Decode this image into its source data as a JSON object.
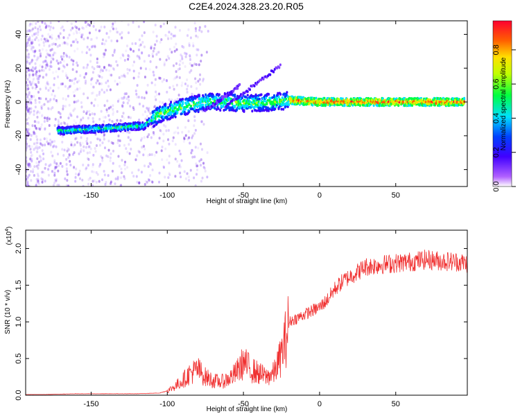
{
  "title": "C2E4.2024.328.23.20.R05",
  "colors": {
    "snr_line": "#f03030",
    "axis": "#000000",
    "background": "#ffffff"
  },
  "chart_data": [
    {
      "type": "heatmap",
      "xlabel": "Height of straight line (km)",
      "ylabel": "Frequency (Hz)",
      "xlim": [
        -193,
        97
      ],
      "ylim": [
        -50,
        48
      ],
      "xticks": [
        -150,
        -100,
        -50,
        0,
        50
      ],
      "xtick_labels": [
        "-150",
        "-100",
        "-50",
        "0",
        "50"
      ],
      "yticks": [
        -40,
        -20,
        0,
        20,
        40
      ],
      "ytick_labels": [
        "-40",
        "-20",
        "0",
        "20",
        "40"
      ],
      "colorscale": "rainbow (white-violet-blue-cyan-green-yellow-orange-red)",
      "ridge": [
        {
          "x": -170,
          "y": -17
        },
        {
          "x": -150,
          "y": -16
        },
        {
          "x": -130,
          "y": -15
        },
        {
          "x": -115,
          "y": -14
        },
        {
          "x": -105,
          "y": -7
        },
        {
          "x": -90,
          "y": -3
        },
        {
          "x": -75,
          "y": 0
        },
        {
          "x": -60,
          "y": 0
        },
        {
          "x": -45,
          "y": -1
        },
        {
          "x": -30,
          "y": 0
        },
        {
          "x": -20,
          "y": 1
        },
        {
          "x": 0,
          "y": 0
        },
        {
          "x": 50,
          "y": 0
        },
        {
          "x": 95,
          "y": 0
        }
      ],
      "colorbar": {
        "label": "Normalized spectral amplitude",
        "range": [
          0.0,
          0.97
        ],
        "ticks": [
          0.0,
          0.2,
          0.4,
          0.6,
          0.8
        ],
        "tick_labels": [
          "0.0",
          "0.2",
          "0.4",
          "0.6",
          "0.8"
        ]
      }
    },
    {
      "type": "line",
      "xlabel": "Height of straight line (km)",
      "ylabel": "SNR (10 * v/v)",
      "yscale_note": "(x10",
      "yscale_exp": "4",
      "xlim": [
        -193,
        97
      ],
      "ylim": [
        0,
        2.25
      ],
      "xticks": [
        -150,
        -100,
        -50,
        0,
        50
      ],
      "xtick_labels": [
        "-150",
        "-100",
        "-50",
        "0",
        "50"
      ],
      "yticks": [
        0.0,
        0.5,
        1.0,
        1.5,
        2.0
      ],
      "ytick_labels": [
        "0.0",
        "0.5",
        "1.0",
        "1.5",
        "2.0"
      ],
      "series": [
        {
          "x": [
            -193,
            -180,
            -160,
            -140,
            -120,
            -105,
            -100,
            -95,
            -90,
            -85,
            -80,
            -75,
            -70,
            -65,
            -60,
            -55,
            -50,
            -45,
            -40,
            -35,
            -30,
            -25,
            -22,
            -20,
            -15,
            -10,
            -5,
            0,
            5,
            10,
            15,
            20,
            25,
            30,
            40,
            50,
            60,
            70,
            80,
            90,
            97
          ],
          "y": [
            0.01,
            0.01,
            0.02,
            0.02,
            0.02,
            0.03,
            0.06,
            0.12,
            0.2,
            0.3,
            0.35,
            0.25,
            0.2,
            0.18,
            0.22,
            0.3,
            0.45,
            0.35,
            0.3,
            0.25,
            0.3,
            0.55,
            0.8,
            1.0,
            1.05,
            1.1,
            1.15,
            1.2,
            1.3,
            1.45,
            1.55,
            1.62,
            1.68,
            1.75,
            1.78,
            1.8,
            1.82,
            1.85,
            1.83,
            1.82,
            1.8
          ]
        }
      ]
    }
  ]
}
